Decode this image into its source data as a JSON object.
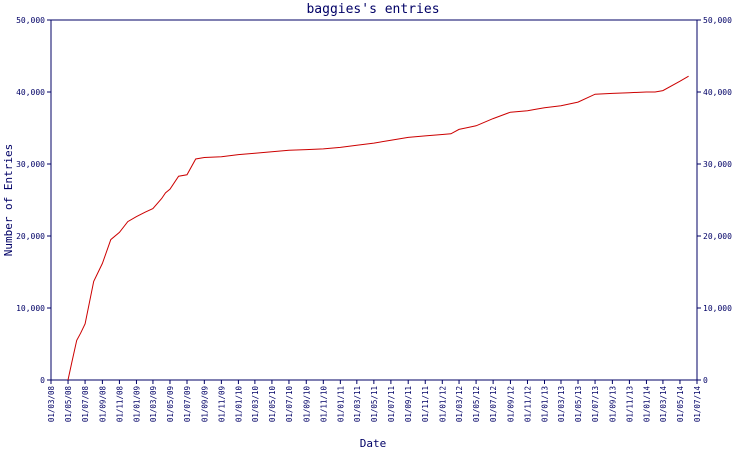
{
  "chart_data": {
    "type": "line",
    "title": "baggies's entries",
    "xlabel": "Date",
    "ylabel": "Number of Entries",
    "ylim": [
      0,
      50000
    ],
    "y_ticks": [
      "0",
      "10,000",
      "20,000",
      "30,000",
      "40,000",
      "50,000"
    ],
    "x_ticks": [
      "01/03/08",
      "01/05/08",
      "01/07/08",
      "01/09/08",
      "01/11/08",
      "01/01/09",
      "01/03/09",
      "01/05/09",
      "01/07/09",
      "01/09/09",
      "01/11/09",
      "01/01/10",
      "01/03/10",
      "01/05/10",
      "01/07/10",
      "01/09/10",
      "01/11/10",
      "01/01/11",
      "01/03/11",
      "01/05/11",
      "01/07/11",
      "01/09/11",
      "01/11/11",
      "01/01/12",
      "01/03/12",
      "01/05/12",
      "01/07/12",
      "01/09/12",
      "01/11/12",
      "01/01/13",
      "01/03/13",
      "01/05/13",
      "01/07/13",
      "01/09/13",
      "01/11/13",
      "01/01/14",
      "01/03/14",
      "01/05/14",
      "01/07/14"
    ],
    "grid": false,
    "line_color": "#cc0000",
    "axis_color": "#000066",
    "series": [
      {
        "x": [
          "2008-05-01",
          "2008-05-15",
          "2008-06-01",
          "2008-06-15",
          "2008-07-01",
          "2008-08-01",
          "2008-09-01",
          "2008-10-01",
          "2008-11-01",
          "2008-12-01",
          "2009-01-01",
          "2009-02-01",
          "2009-03-01",
          "2009-04-01",
          "2009-04-15",
          "2009-05-01",
          "2009-06-01",
          "2009-07-01",
          "2009-08-01",
          "2009-09-01",
          "2009-11-01",
          "2010-01-01",
          "2010-03-01",
          "2010-05-01",
          "2010-07-01",
          "2010-09-01",
          "2010-11-01",
          "2011-01-01",
          "2011-03-01",
          "2011-05-01",
          "2011-07-01",
          "2011-09-01",
          "2011-11-01",
          "2012-01-01",
          "2012-02-01",
          "2012-03-01",
          "2012-05-01",
          "2012-07-01",
          "2012-09-01",
          "2012-11-01",
          "2012-12-01",
          "2013-01-01",
          "2013-03-01",
          "2013-05-01",
          "2013-07-01",
          "2013-09-01",
          "2013-11-01",
          "2014-01-01",
          "2014-02-01",
          "2014-03-01",
          "2014-05-01",
          "2014-06-01"
        ],
        "values": [
          0,
          2500,
          5500,
          6500,
          7800,
          13700,
          16200,
          19500,
          20500,
          22000,
          22700,
          23300,
          23800,
          25200,
          26000,
          26500,
          28300,
          28500,
          30700,
          30900,
          31000,
          31300,
          31500,
          31700,
          31900,
          32000,
          32100,
          32300,
          32600,
          32900,
          33300,
          33700,
          33900,
          34100,
          34200,
          34800,
          35300,
          36300,
          37200,
          37400,
          37600,
          37800,
          38100,
          38600,
          39700,
          39800,
          39900,
          40000,
          40000,
          40200,
          41500,
          42200
        ]
      }
    ]
  }
}
